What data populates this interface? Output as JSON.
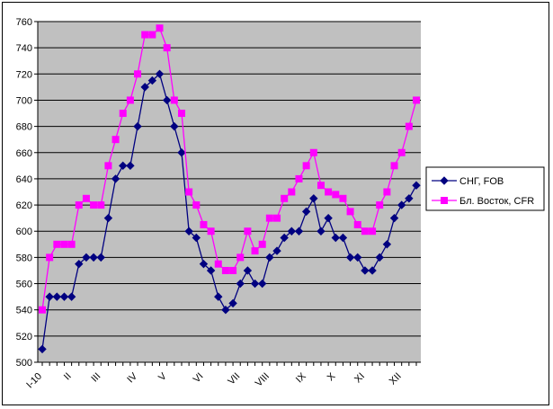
{
  "chart_data": {
    "type": "line",
    "title": "",
    "xlabel": "",
    "ylabel": "",
    "ylim": [
      500,
      760
    ],
    "y_ticks": [
      500,
      520,
      540,
      560,
      580,
      600,
      620,
      640,
      660,
      680,
      700,
      720,
      740,
      760
    ],
    "x_tick_labels": [
      "I-10",
      "II",
      "III",
      "IV",
      "V",
      "VI",
      "VII",
      "VIII",
      "IX",
      "X",
      "XI",
      "XII"
    ],
    "x_tick_index": [
      0,
      4,
      8,
      13,
      17,
      22,
      27,
      31,
      36,
      40,
      44,
      49
    ],
    "grid": true,
    "legend_position": "right",
    "plot_background": "#c0c0c0",
    "series": [
      {
        "name": "СНГ, FOB",
        "color": "#000080",
        "marker": "diamond",
        "values": [
          510,
          550,
          550,
          550,
          550,
          575,
          580,
          580,
          580,
          610,
          640,
          650,
          650,
          680,
          710,
          715,
          720,
          700,
          680,
          660,
          600,
          595,
          575,
          570,
          550,
          540,
          545,
          560,
          570,
          560,
          560,
          580,
          585,
          595,
          600,
          600,
          615,
          625,
          600,
          610,
          595,
          595,
          580,
          580,
          570,
          570,
          580,
          590,
          610,
          620,
          625,
          635
        ]
      },
      {
        "name": "Бл. Восток, CFR",
        "color": "#ff00ff",
        "marker": "square",
        "values": [
          540,
          580,
          590,
          590,
          590,
          620,
          625,
          620,
          620,
          650,
          670,
          690,
          700,
          720,
          750,
          750,
          755,
          740,
          700,
          690,
          630,
          620,
          605,
          600,
          575,
          570,
          570,
          580,
          600,
          585,
          590,
          610,
          610,
          625,
          630,
          640,
          650,
          660,
          635,
          630,
          628,
          625,
          615,
          605,
          600,
          600,
          620,
          630,
          650,
          660,
          680,
          700
        ]
      }
    ]
  }
}
